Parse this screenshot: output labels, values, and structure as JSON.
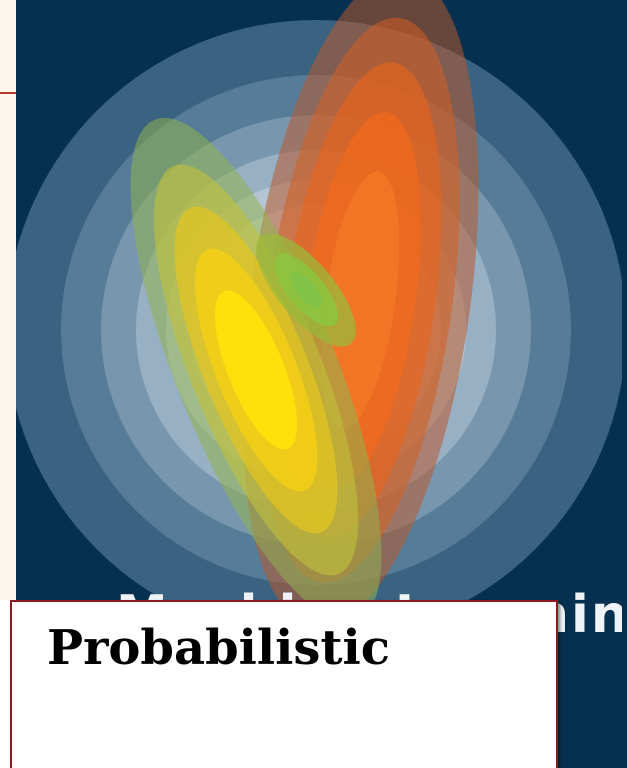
{
  "title_box": {
    "text": "Probabilistic"
  },
  "cover": {
    "partial_title_text": "Machine Learning",
    "colors": {
      "background": "#06304f",
      "ring_light": "#c9d6e0",
      "orange": "#f26a1b",
      "yellow": "#ffe20a",
      "green": "#8cc63f",
      "title_border": "#8d1a1f",
      "accent_rule": "#b5352a"
    }
  }
}
